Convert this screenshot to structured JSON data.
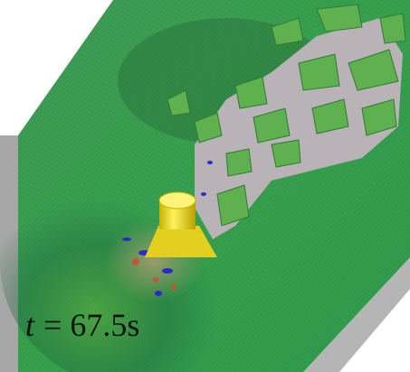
{
  "caption": {
    "symbol": "t",
    "value": "= 67.5s"
  }
}
